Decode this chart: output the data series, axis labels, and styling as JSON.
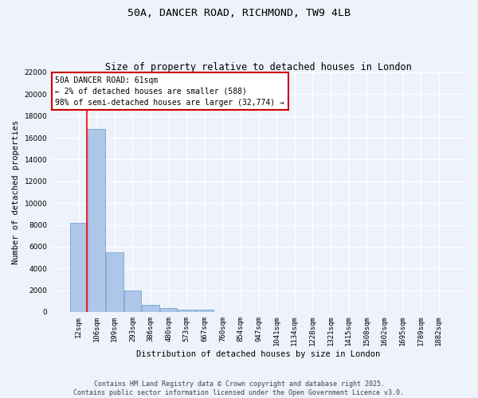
{
  "title": "50A, DANCER ROAD, RICHMOND, TW9 4LB",
  "subtitle": "Size of property relative to detached houses in London",
  "xlabel": "Distribution of detached houses by size in London",
  "ylabel": "Number of detached properties",
  "categories": [
    "12sqm",
    "106sqm",
    "199sqm",
    "293sqm",
    "386sqm",
    "480sqm",
    "573sqm",
    "667sqm",
    "760sqm",
    "854sqm",
    "947sqm",
    "1041sqm",
    "1134sqm",
    "1228sqm",
    "1321sqm",
    "1415sqm",
    "1508sqm",
    "1602sqm",
    "1695sqm",
    "1789sqm",
    "1882sqm"
  ],
  "values": [
    8200,
    16800,
    5450,
    1950,
    680,
    380,
    240,
    180,
    0,
    0,
    0,
    0,
    0,
    0,
    0,
    0,
    0,
    0,
    0,
    0,
    0
  ],
  "bar_color": "#aec6e8",
  "bar_edgecolor": "#6699cc",
  "background_color": "#eef2fa",
  "annotation_text": "50A DANCER ROAD: 61sqm\n← 2% of detached houses are smaller (588)\n98% of semi-detached houses are larger (32,774) →",
  "annotation_box_color": "#ffffff",
  "annotation_box_edgecolor": "#cc0000",
  "redline_x": 0.47,
  "ylim": [
    0,
    22000
  ],
  "yticks": [
    0,
    2000,
    4000,
    6000,
    8000,
    10000,
    12000,
    14000,
    16000,
    18000,
    20000,
    22000
  ],
  "footer": "Contains HM Land Registry data © Crown copyright and database right 2025.\nContains public sector information licensed under the Open Government Licence v3.0.",
  "title_fontsize": 9.5,
  "subtitle_fontsize": 8.5,
  "axis_label_fontsize": 7.5,
  "tick_fontsize": 6.5,
  "annotation_fontsize": 7,
  "footer_fontsize": 6
}
